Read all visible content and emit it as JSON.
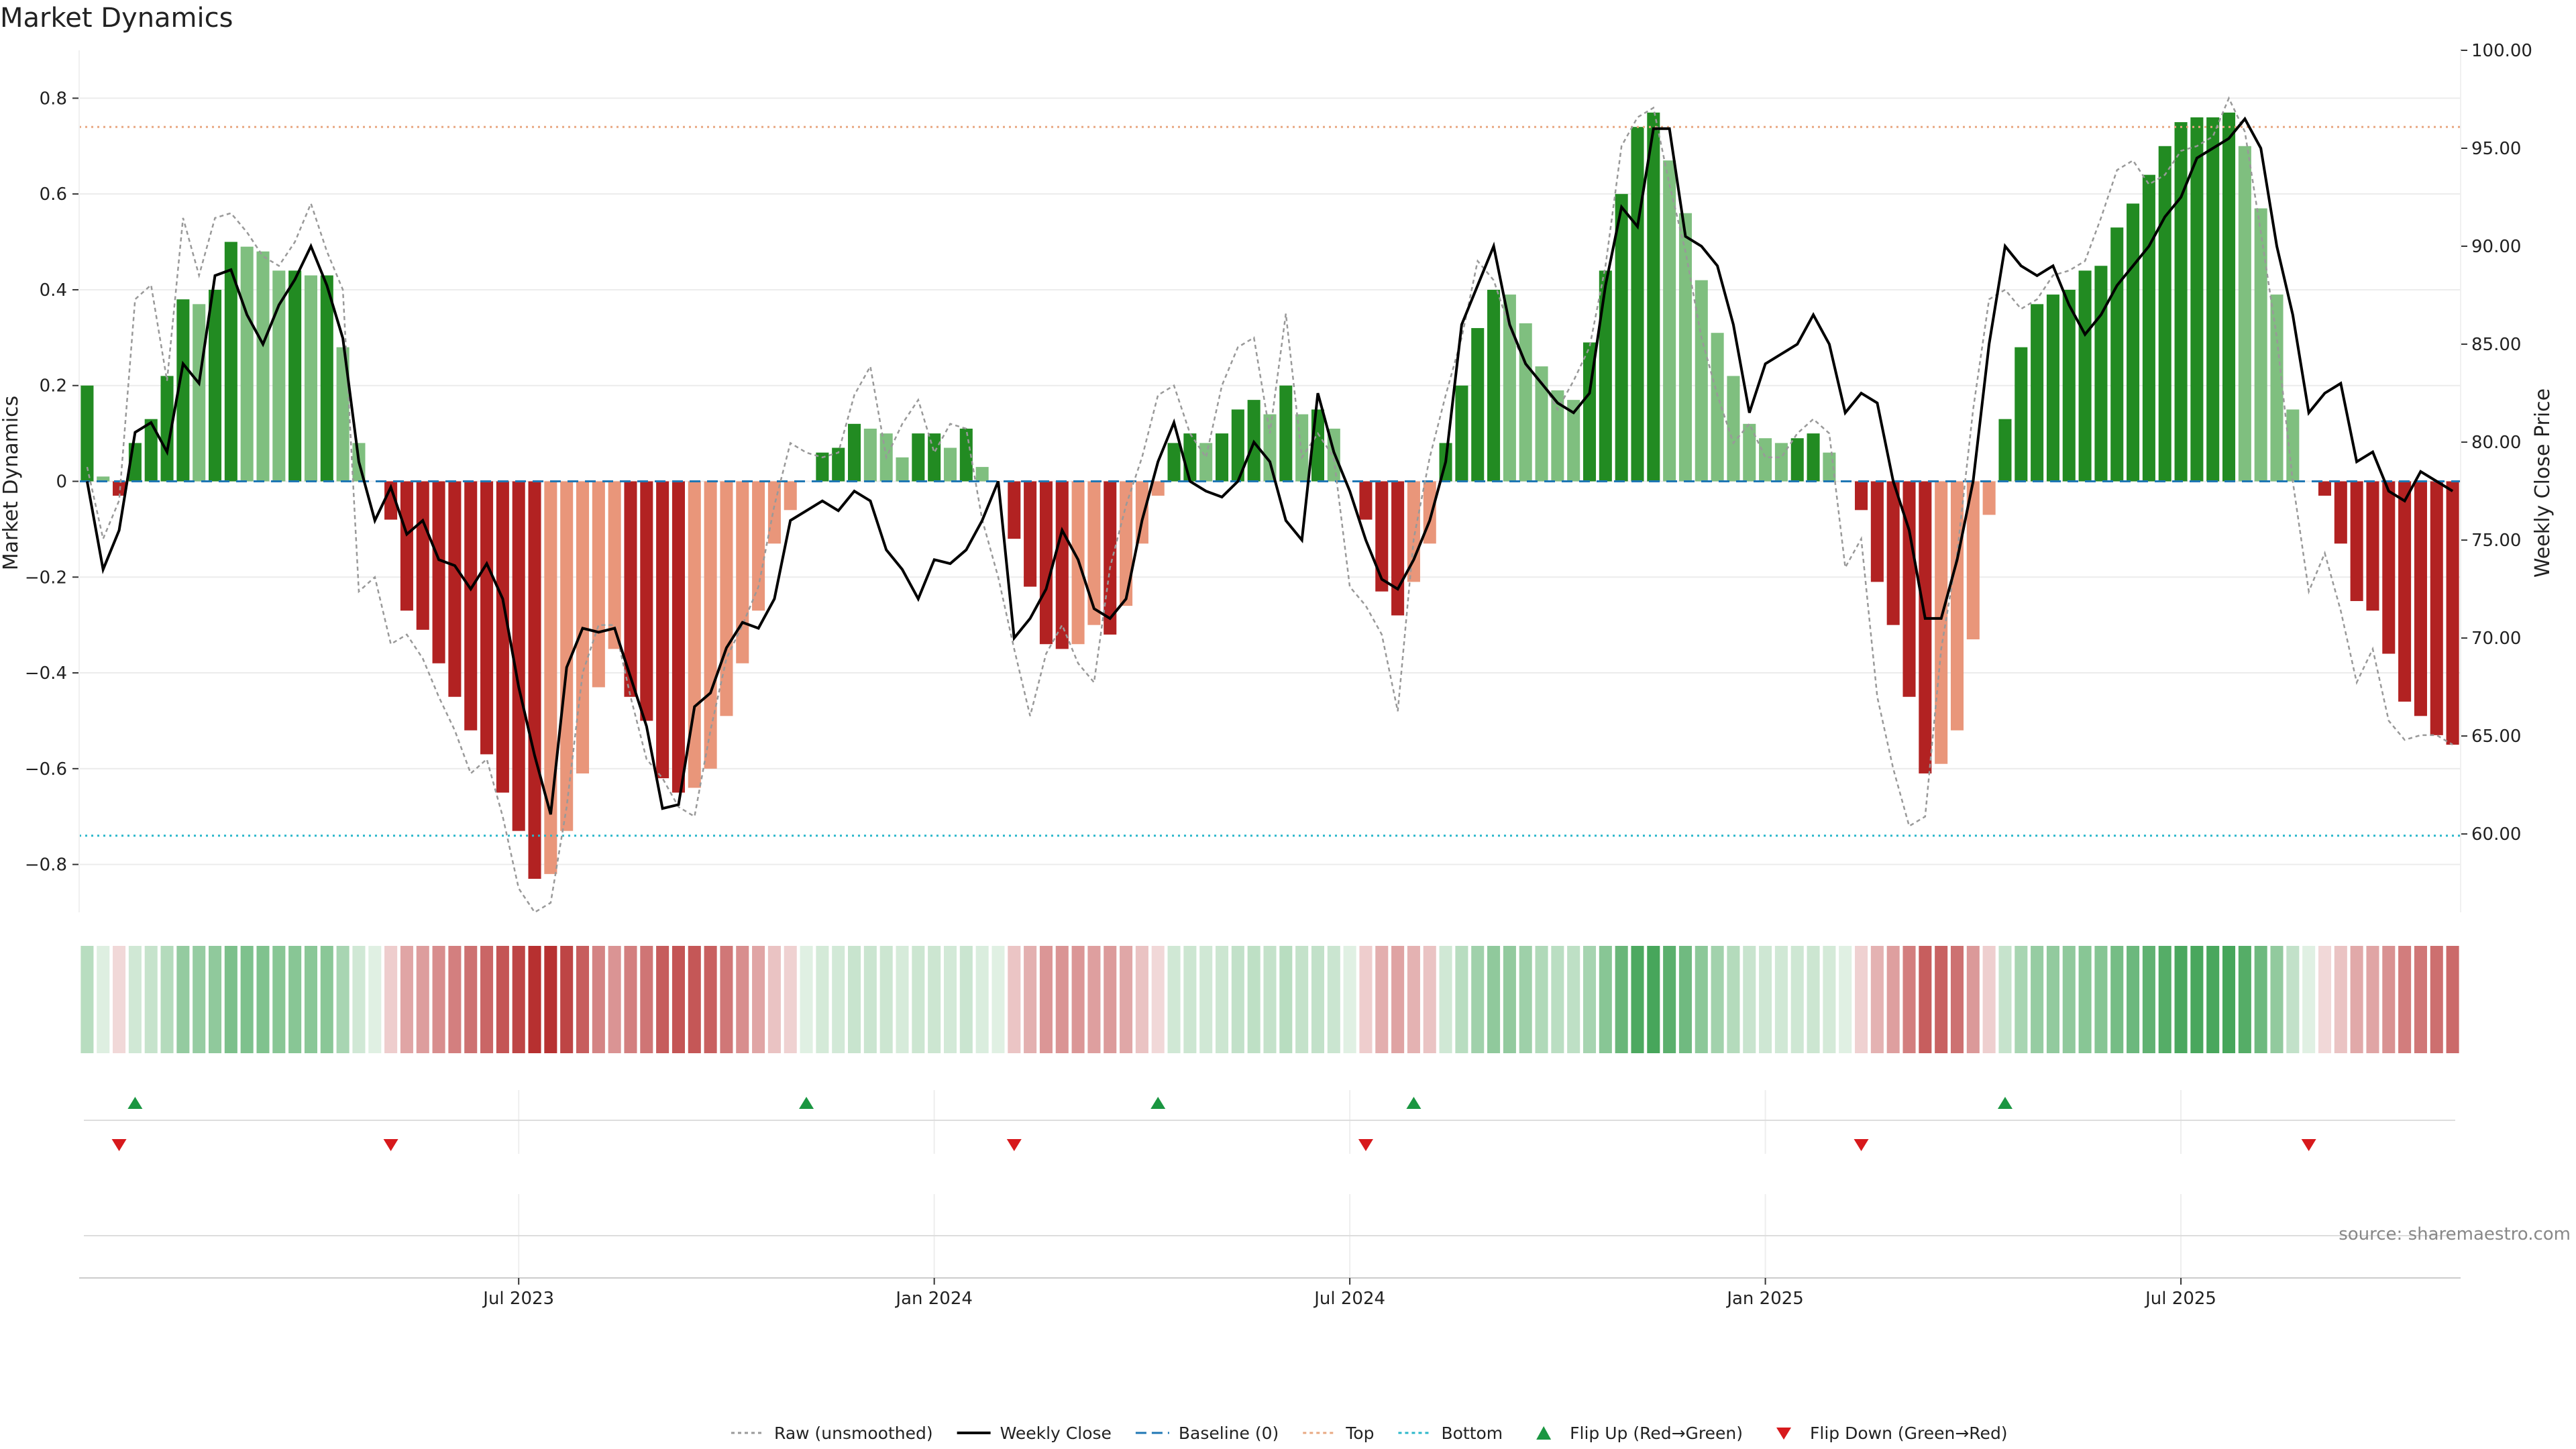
{
  "chart_data": {
    "type": "bar",
    "title": "Market Dynamics",
    "ylabel": "Market Dynamics",
    "y2label": "Weekly Close Price",
    "ylim": [
      -0.9,
      0.9
    ],
    "y2lim": [
      56.0,
      100.0
    ],
    "y_ticks": [
      -0.8,
      -0.6,
      -0.4,
      -0.2,
      0,
      0.2,
      0.4,
      0.6,
      0.8
    ],
    "y_tick_labels": [
      "−0.8",
      "−0.6",
      "−0.4",
      "−0.2",
      "0",
      "0.2",
      "0.4",
      "0.6",
      "0.8"
    ],
    "y2_ticks": [
      60,
      65,
      70,
      75,
      80,
      85,
      90,
      95,
      100
    ],
    "y2_tick_labels": [
      "60.00",
      "65.00",
      "70.00",
      "75.00",
      "80.00",
      "85.00",
      "90.00",
      "95.00",
      "100.00"
    ],
    "x_ticks": [
      {
        "index": 27,
        "label": "Jul 2023"
      },
      {
        "index": 53,
        "label": "Jan 2024"
      },
      {
        "index": 79,
        "label": "Jul 2024"
      },
      {
        "index": 105,
        "label": "Jan 2025"
      },
      {
        "index": 131,
        "label": "Jul 2025"
      }
    ],
    "top_level": 0.74,
    "bottom_level": -0.74,
    "baseline": 0,
    "series": [
      {
        "name": "Market Dynamics",
        "values": [
          0.2,
          0.01,
          -0.03,
          0.08,
          0.13,
          0.22,
          0.38,
          0.37,
          0.4,
          0.5,
          0.49,
          0.48,
          0.44,
          0.44,
          0.43,
          0.43,
          0.28,
          0.08,
          0.0,
          -0.08,
          -0.27,
          -0.31,
          -0.38,
          -0.45,
          -0.52,
          -0.57,
          -0.65,
          -0.73,
          -0.83,
          -0.82,
          -0.73,
          -0.61,
          -0.43,
          -0.35,
          -0.45,
          -0.5,
          -0.62,
          -0.65,
          -0.64,
          -0.6,
          -0.49,
          -0.38,
          -0.27,
          -0.13,
          -0.06,
          0.0,
          0.06,
          0.07,
          0.12,
          0.11,
          0.1,
          0.05,
          0.1,
          0.1,
          0.07,
          0.11,
          0.03,
          0.0,
          -0.12,
          -0.22,
          -0.34,
          -0.35,
          -0.34,
          -0.3,
          -0.32,
          -0.26,
          -0.13,
          -0.03,
          0.08,
          0.1,
          0.08,
          0.1,
          0.15,
          0.17,
          0.14,
          0.2,
          0.14,
          0.15,
          0.11,
          0.0,
          -0.08,
          -0.23,
          -0.28,
          -0.21,
          -0.13,
          0.08,
          0.2,
          0.32,
          0.4,
          0.39,
          0.33,
          0.24,
          0.19,
          0.17,
          0.29,
          0.44,
          0.6,
          0.74,
          0.77,
          0.67,
          0.56,
          0.42,
          0.31,
          0.22,
          0.12,
          0.09,
          0.08,
          0.09,
          0.1,
          0.06,
          0.0,
          -0.06,
          -0.21,
          -0.3,
          -0.45,
          -0.61,
          -0.59,
          -0.52,
          -0.33,
          -0.07,
          0.13,
          0.28,
          0.37,
          0.39,
          0.4,
          0.44,
          0.45,
          0.53,
          0.58,
          0.64,
          0.7,
          0.75,
          0.76,
          0.76,
          0.77,
          0.7,
          0.57,
          0.39,
          0.15,
          0.0,
          -0.03,
          -0.13,
          -0.25,
          -0.27,
          -0.36,
          -0.46,
          -0.49,
          -0.53,
          -0.55
        ]
      },
      {
        "name": "Weekly Close",
        "axis": "right",
        "values": [
          78.0,
          73.5,
          75.5,
          80.5,
          81.0,
          79.5,
          84.0,
          83.0,
          88.5,
          88.8,
          86.5,
          85.0,
          87.0,
          88.3,
          90.0,
          88.0,
          85.3,
          79.0,
          76.0,
          77.7,
          75.3,
          76.0,
          74.0,
          73.7,
          72.5,
          73.8,
          72.0,
          67.5,
          64.0,
          61.0,
          68.5,
          70.5,
          70.3,
          70.5,
          68.0,
          65.5,
          61.3,
          61.5,
          66.5,
          67.2,
          69.5,
          70.8,
          70.5,
          72.0,
          76.0,
          76.5,
          77.0,
          76.5,
          77.5,
          77.0,
          74.5,
          73.5,
          72.0,
          74.0,
          73.8,
          74.5,
          76.0,
          78.0,
          70.0,
          71.0,
          72.5,
          75.5,
          74.0,
          71.5,
          71.0,
          72.0,
          76.0,
          79.0,
          81.0,
          78.0,
          77.5,
          77.2,
          78.0,
          80.0,
          79.0,
          76.0,
          75.0,
          82.5,
          79.5,
          77.5,
          75.0,
          73.0,
          72.5,
          74.0,
          76.0,
          79.0,
          86.0,
          88.0,
          90.0,
          86.0,
          84.0,
          83.0,
          82.0,
          81.5,
          82.5,
          88.0,
          92.0,
          91.0,
          96.0,
          96.0,
          90.5,
          90.0,
          89.0,
          86.0,
          81.5,
          84.0,
          84.5,
          85.0,
          86.5,
          85.0,
          81.5,
          82.5,
          82.0,
          78.0,
          75.5,
          71.0,
          71.0,
          74.0,
          78.0,
          85.0,
          90.0,
          89.0,
          88.5,
          89.0,
          87.0,
          85.5,
          86.5,
          88.0,
          89.0,
          90.0,
          91.5,
          92.5,
          94.5,
          95.0,
          95.5,
          96.5,
          95.0,
          90.0,
          86.5,
          81.5,
          82.5,
          83.0,
          79.0,
          79.5,
          77.5,
          77.0,
          78.5,
          78.0,
          77.5
        ]
      },
      {
        "name": "Raw (unsmoothed)",
        "axis": "left",
        "values": [
          0.03,
          -0.12,
          -0.04,
          0.38,
          0.41,
          0.21,
          0.55,
          0.43,
          0.55,
          0.56,
          0.52,
          0.47,
          0.45,
          0.5,
          0.58,
          0.48,
          0.4,
          -0.23,
          -0.2,
          -0.34,
          -0.32,
          -0.37,
          -0.45,
          -0.52,
          -0.61,
          -0.58,
          -0.7,
          -0.85,
          -0.9,
          -0.88,
          -0.68,
          -0.4,
          -0.3,
          -0.3,
          -0.45,
          -0.58,
          -0.62,
          -0.68,
          -0.7,
          -0.52,
          -0.37,
          -0.3,
          -0.22,
          -0.05,
          0.08,
          0.06,
          0.05,
          0.06,
          0.18,
          0.24,
          0.05,
          0.12,
          0.17,
          0.06,
          0.12,
          0.11,
          -0.08,
          -0.2,
          -0.35,
          -0.49,
          -0.36,
          -0.3,
          -0.38,
          -0.42,
          -0.18,
          -0.05,
          0.05,
          0.18,
          0.2,
          0.1,
          0.05,
          0.2,
          0.28,
          0.3,
          0.1,
          0.35,
          0.05,
          0.1,
          0.05,
          -0.22,
          -0.26,
          -0.32,
          -0.48,
          -0.12,
          0.05,
          0.18,
          0.3,
          0.46,
          0.42,
          0.32,
          0.24,
          0.21,
          0.15,
          0.21,
          0.28,
          0.45,
          0.7,
          0.76,
          0.78,
          0.62,
          0.48,
          0.3,
          0.18,
          0.08,
          0.12,
          0.05,
          0.05,
          0.1,
          0.13,
          0.1,
          -0.18,
          -0.12,
          -0.45,
          -0.6,
          -0.72,
          -0.7,
          -0.35,
          -0.15,
          0.15,
          0.38,
          0.4,
          0.36,
          0.38,
          0.43,
          0.44,
          0.46,
          0.55,
          0.65,
          0.67,
          0.62,
          0.64,
          0.69,
          0.7,
          0.72,
          0.8,
          0.73,
          0.52,
          0.3,
          0.0,
          -0.23,
          -0.15,
          -0.27,
          -0.42,
          -0.35,
          -0.5,
          -0.54,
          -0.53,
          -0.53,
          -0.55
        ]
      }
    ],
    "flips_up": [
      3,
      45,
      67,
      83,
      120
    ],
    "flips_down": [
      2,
      19,
      58,
      80,
      111,
      139
    ],
    "legend": {
      "position": "bottom-center",
      "entries": [
        {
          "label": "Raw (unsmoothed)",
          "style": "dotted-line",
          "color": "#999999"
        },
        {
          "label": "Weekly Close",
          "style": "solid-line",
          "color": "#000000"
        },
        {
          "label": "Baseline (0)",
          "style": "dashed-line",
          "color": "#1f77b4"
        },
        {
          "label": "Top",
          "style": "dotted-line",
          "color": "#e8a882"
        },
        {
          "label": "Bottom",
          "style": "dotted-line",
          "color": "#2ab7ca"
        },
        {
          "label": "Flip Up (Red→Green)",
          "style": "triangle-up",
          "color": "#1a9641"
        },
        {
          "label": "Flip Down (Green→Red)",
          "style": "triangle-down",
          "color": "#d7191c"
        }
      ]
    },
    "source": "source: sharemaestro.com",
    "colors": {
      "up_strong": "#228b22",
      "up_weak": "#7fbf7f",
      "down_strong": "#b22222",
      "down_weak": "#e9967a",
      "raw": "#999999",
      "close": "#000000",
      "baseline": "#1f77b4",
      "top": "#e8a882",
      "bottom": "#2ab7ca",
      "flip_up": "#1a9641",
      "flip_down": "#d7191c"
    }
  }
}
